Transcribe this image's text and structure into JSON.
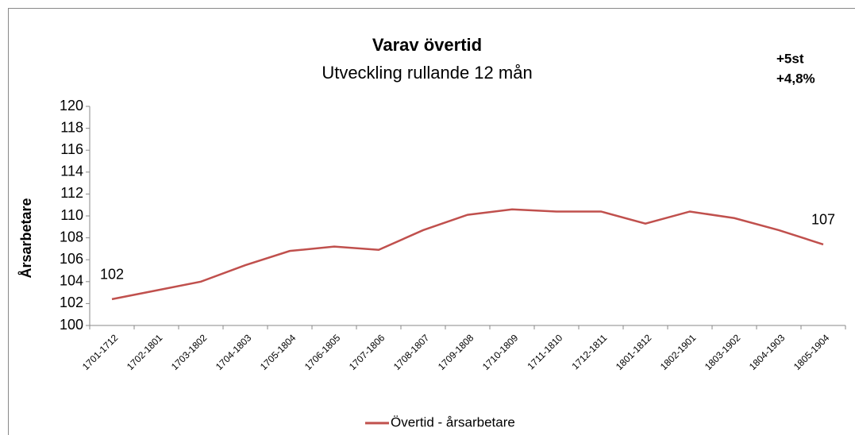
{
  "chart_data": {
    "type": "line",
    "title": "Varav övertid",
    "subtitle": "Utveckling rullande 12 mån",
    "annotations": [
      "+5st",
      "+4,8%"
    ],
    "y_label": "Årsarbetare",
    "categories": [
      "1701-1712",
      "1702-1801",
      "1703-1802",
      "1704-1803",
      "1705-1804",
      "1706-1805",
      "1707-1806",
      "1708-1807",
      "1709-1808",
      "1710-1809",
      "1711-1810",
      "1712-1811",
      "1801-1812",
      "1802-1901",
      "1803-1902",
      "1804-1903",
      "1805-1904"
    ],
    "series": [
      {
        "name": "Övertid - årsarbetare",
        "color": "#c0504d",
        "values": [
          102.4,
          103.2,
          104.0,
          105.5,
          106.8,
          107.2,
          106.9,
          108.7,
          110.1,
          110.6,
          110.4,
          110.4,
          109.3,
          110.4,
          109.8,
          108.7,
          107.4
        ],
        "value_labels": [
          "102",
          null,
          null,
          null,
          null,
          null,
          null,
          null,
          null,
          null,
          null,
          null,
          null,
          null,
          null,
          null,
          "107"
        ]
      }
    ],
    "ylim": [
      100,
      120
    ],
    "yticks": [
      100,
      102,
      104,
      106,
      108,
      110,
      112,
      114,
      116,
      118,
      120
    ],
    "grid": false,
    "legend": "bottom"
  }
}
